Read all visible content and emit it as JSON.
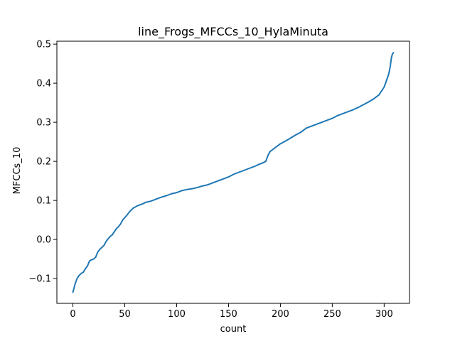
{
  "chart_data": {
    "type": "line",
    "title": "line_Frogs_MFCCs_10_HylaMinuta",
    "xlabel": "count",
    "ylabel": "MFCCs_10",
    "xlim": [
      -15.45,
      324.45
    ],
    "ylim": [
      -0.1635,
      0.5075
    ],
    "xticks": [
      0,
      50,
      100,
      150,
      200,
      250,
      300
    ],
    "yticks": [
      -0.1,
      0.0,
      0.1,
      0.2,
      0.3,
      0.4,
      0.5
    ],
    "xtick_labels": [
      "0",
      "50",
      "100",
      "150",
      "200",
      "250",
      "300"
    ],
    "ytick_labels": [
      "−0.1",
      "0.0",
      "0.1",
      "0.2",
      "0.3",
      "0.4",
      "0.5"
    ],
    "grid": false,
    "series": [
      {
        "color": "#1f77b4",
        "x": [
          0,
          1,
          2,
          4,
          6,
          8,
          10,
          12,
          14,
          16,
          18,
          20,
          22,
          24,
          26,
          28,
          30,
          32,
          34,
          36,
          38,
          40,
          42,
          44,
          46,
          48,
          50,
          52,
          55,
          58,
          60,
          62,
          65,
          68,
          70,
          75,
          80,
          85,
          90,
          95,
          100,
          105,
          110,
          115,
          120,
          125,
          130,
          135,
          140,
          145,
          150,
          155,
          160,
          165,
          170,
          175,
          180,
          183,
          186,
          188,
          190,
          195,
          200,
          205,
          210,
          215,
          220,
          225,
          230,
          235,
          240,
          245,
          250,
          255,
          260,
          265,
          270,
          275,
          280,
          285,
          290,
          295,
          300,
          302,
          304,
          305,
          306,
          307,
          308,
          309
        ],
        "y": [
          -0.135,
          -0.125,
          -0.115,
          -0.1,
          -0.092,
          -0.087,
          -0.084,
          -0.075,
          -0.068,
          -0.055,
          -0.052,
          -0.05,
          -0.045,
          -0.032,
          -0.025,
          -0.02,
          -0.015,
          -0.005,
          0.002,
          0.008,
          0.012,
          0.02,
          0.028,
          0.033,
          0.04,
          0.05,
          0.056,
          0.062,
          0.072,
          0.08,
          0.083,
          0.086,
          0.089,
          0.092,
          0.095,
          0.098,
          0.103,
          0.108,
          0.112,
          0.117,
          0.12,
          0.125,
          0.128,
          0.13,
          0.133,
          0.137,
          0.14,
          0.145,
          0.15,
          0.155,
          0.16,
          0.167,
          0.172,
          0.177,
          0.182,
          0.187,
          0.193,
          0.196,
          0.2,
          0.215,
          0.225,
          0.235,
          0.245,
          0.252,
          0.26,
          0.268,
          0.275,
          0.285,
          0.29,
          0.295,
          0.3,
          0.305,
          0.31,
          0.317,
          0.322,
          0.327,
          0.332,
          0.338,
          0.345,
          0.352,
          0.36,
          0.37,
          0.39,
          0.405,
          0.42,
          0.43,
          0.445,
          0.465,
          0.475,
          0.478
        ]
      }
    ]
  }
}
